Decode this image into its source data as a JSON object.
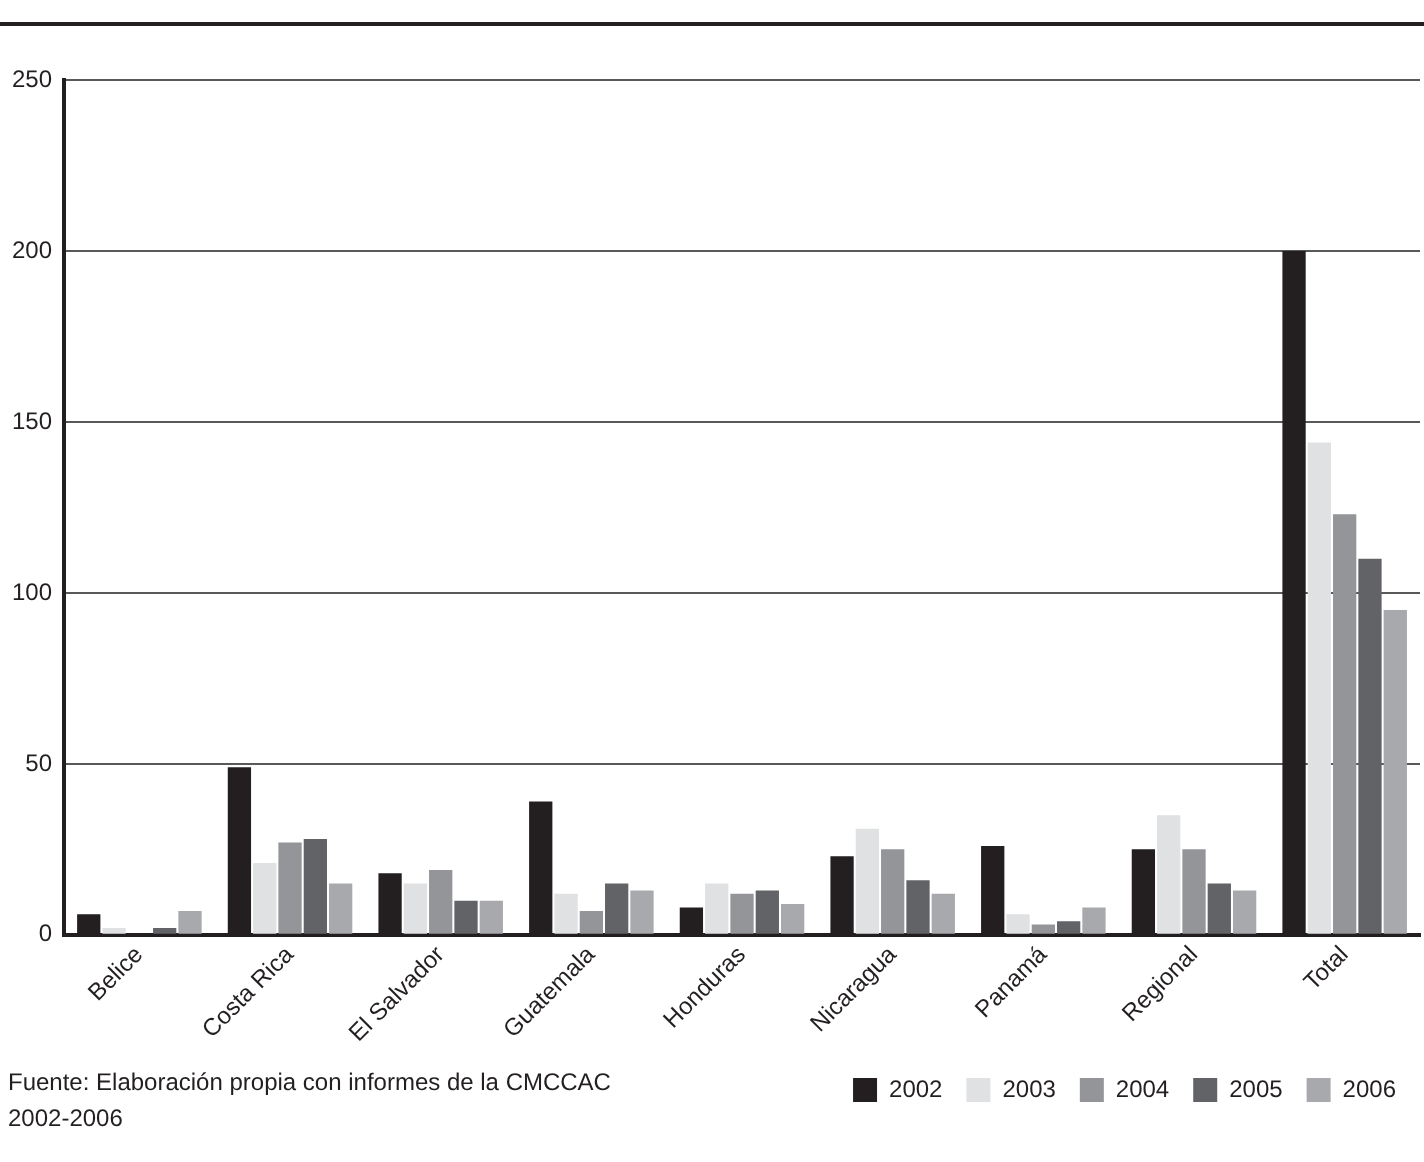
{
  "chart_data": {
    "type": "bar",
    "categories": [
      "Belice",
      "Costa Rica",
      "El Salvador",
      "Guatemala",
      "Honduras",
      "Nicaragua",
      "Panamá",
      "Regional",
      "Total"
    ],
    "series": [
      {
        "name": "2002",
        "color": "#231f20",
        "values": [
          6,
          49,
          18,
          39,
          8,
          23,
          26,
          25,
          200
        ]
      },
      {
        "name": "2003",
        "color": "#e0e1e2",
        "values": [
          2,
          21,
          15,
          12,
          15,
          31,
          6,
          35,
          144
        ]
      },
      {
        "name": "2004",
        "color": "#939598",
        "values": [
          0,
          27,
          19,
          7,
          12,
          25,
          3,
          25,
          123
        ]
      },
      {
        "name": "2005",
        "color": "#626366",
        "values": [
          2,
          28,
          10,
          15,
          13,
          16,
          4,
          15,
          110
        ]
      },
      {
        "name": "2006",
        "color": "#a7a9ac",
        "values": [
          7,
          15,
          10,
          13,
          9,
          12,
          8,
          13,
          95
        ]
      }
    ],
    "ylim": [
      0,
      250
    ],
    "yticks": [
      0,
      50,
      100,
      150,
      200,
      250
    ],
    "grid": "y",
    "legend": "bottom right",
    "annotations": [
      "Fuente: Elaboración propia con informes de la CMCCAC 2002-2006"
    ]
  }
}
